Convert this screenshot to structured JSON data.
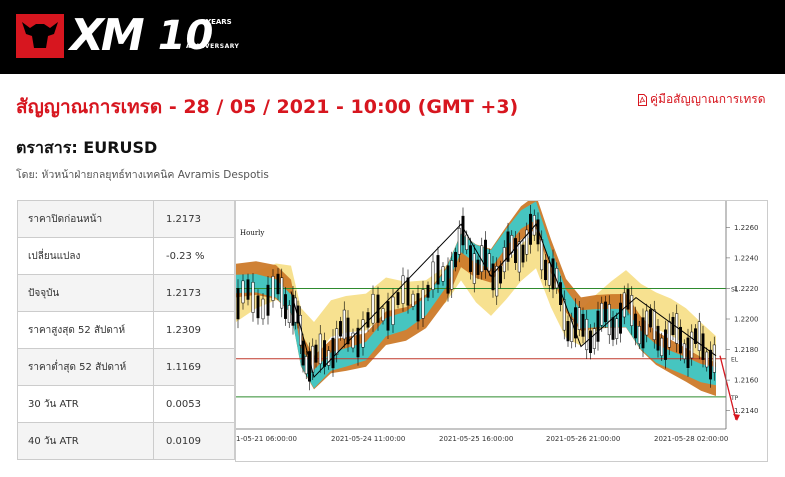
{
  "header": {
    "logo_text": "XM",
    "anniversary_number": "10",
    "anniversary_years": "YEARS",
    "anniversary_label": "ANNIVERSARY"
  },
  "title": "สัญญาณการเทรด - 28 / 05 / 2021 - 10:00 (GMT +3)",
  "guide_link": "คู่มือสัญญาณการเทรด",
  "instrument": "ตราสาร: EURUSD",
  "byline": "โดย: หัวหน้าฝ่ายกลยุทธ์ทางเทคนิค Avramis Despotis",
  "stats": [
    {
      "label": "ราคาปิดก่อนหน้า",
      "value": "1.2173"
    },
    {
      "label": "เปลี่ยนแปลง",
      "value": "-0.23 %"
    },
    {
      "label": "ปัจจุบัน",
      "value": "1.2173"
    },
    {
      "label": "ราคาสูงสุด 52 สัปดาห์",
      "value": "1.2309"
    },
    {
      "label": "ราคาต่ำสุด 52 สัปดาห์",
      "value": "1.1169"
    },
    {
      "label": "30 วัน ATR",
      "value": "0.0053"
    },
    {
      "label": "40 วัน ATR",
      "value": "0.0109"
    }
  ],
  "chart": {
    "timeframe": "Hourly",
    "x_labels": [
      "1-05-21 06:00:00",
      "2021-05-24 11:00:00",
      "2021-05-25 16:00:00",
      "2021-05-26 21:00:00",
      "2021-05-28 02:00:00"
    ],
    "y_ticks": [
      "1.2260",
      "1.2240",
      "1.2220",
      "1.2200",
      "1.2180",
      "1.2160",
      "1.2140"
    ],
    "ylim": [
      1.2128,
      1.2272
    ],
    "levels": [
      {
        "name": "SL",
        "value": 1.222,
        "color": "#2e8b2e"
      },
      {
        "name": "EL",
        "value": 1.2174,
        "color": "#c0392b"
      },
      {
        "name": "TP",
        "value": 1.2149,
        "color": "#2e8b2e"
      }
    ],
    "level_labels": {
      "sl": "SL",
      "el": "EL",
      "tp": "TP"
    },
    "colors": {
      "teal": "#3ec8c8",
      "orange": "#cc7a2a",
      "yellow": "#f7df8a",
      "signal_arrow": "#d7161f"
    }
  }
}
